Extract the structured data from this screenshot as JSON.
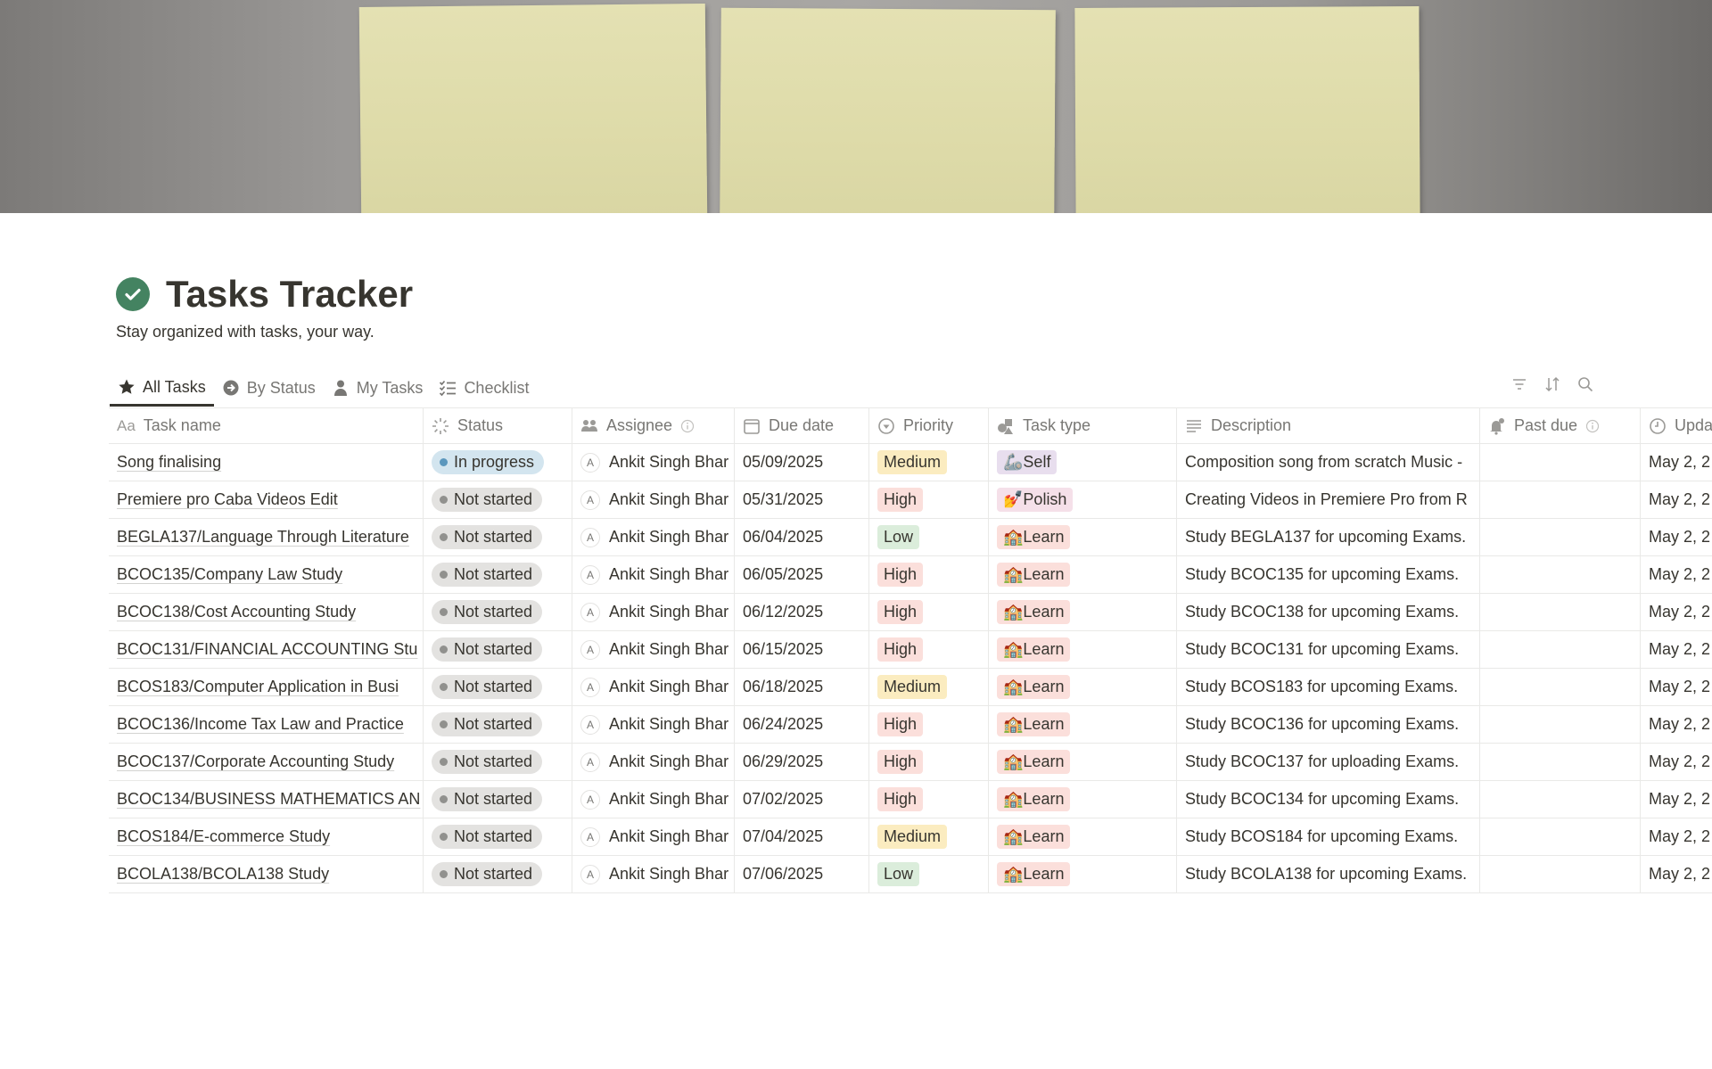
{
  "page": {
    "title": "Tasks Tracker",
    "subtitle": "Stay organized with tasks, your way.",
    "icon": "check-circle-icon",
    "accent": "#448361"
  },
  "tabs": [
    {
      "label": "All Tasks",
      "icon": "star-icon",
      "active": true
    },
    {
      "label": "By Status",
      "icon": "arrow-circle-icon",
      "active": false
    },
    {
      "label": "My Tasks",
      "icon": "person-icon",
      "active": false
    },
    {
      "label": "Checklist",
      "icon": "checklist-icon",
      "active": false
    }
  ],
  "toolbar": [
    "filter-icon",
    "sort-icon",
    "search-icon"
  ],
  "columns": [
    {
      "label": "Task name",
      "icon": "text-icon"
    },
    {
      "label": "Status",
      "icon": "status-icon"
    },
    {
      "label": "Assignee",
      "icon": "people-icon",
      "info": true
    },
    {
      "label": "Due date",
      "icon": "calendar-icon"
    },
    {
      "label": "Priority",
      "icon": "select-icon"
    },
    {
      "label": "Task type",
      "icon": "shapes-icon"
    },
    {
      "label": "Description",
      "icon": "lines-icon"
    },
    {
      "label": "Past due",
      "icon": "bell-icon",
      "info": true
    },
    {
      "label": "Upda",
      "icon": "clock-icon"
    }
  ],
  "statuses": {
    "In progress": {
      "bg": "#d3e5ef",
      "dot": "#5b97bd"
    },
    "Not started": {
      "bg": "#e3e2e0",
      "dot": "#91918e"
    }
  },
  "priorities": {
    "Medium": "#fbecc0",
    "High": "#fbdfdb",
    "Low": "#dbeddb"
  },
  "types": {
    "Self": {
      "emoji": "🦾",
      "bg": "#e8deee"
    },
    "Polish": {
      "emoji": "💅",
      "bg": "#f5e0e9"
    },
    "Learn": {
      "emoji": "🏫",
      "bg": "#fbdfdb"
    }
  },
  "rows": [
    {
      "task": "Song finalising",
      "status": "In progress",
      "assignee": "Ankit Singh Bhar",
      "initial": "A",
      "due": "05/09/2025",
      "priority": "Medium",
      "type": "Self",
      "description": "Composition song from scratch Music -",
      "past_due": "",
      "updated": "May 2, 2"
    },
    {
      "task": "Premiere pro Caba Videos Edit",
      "status": "Not started",
      "assignee": "Ankit Singh Bhar",
      "initial": "A",
      "due": "05/31/2025",
      "priority": "High",
      "type": "Polish",
      "description": "Creating Videos in Premiere Pro from R",
      "past_due": "",
      "updated": "May 2, 2"
    },
    {
      "task": "BEGLA137/Language Through Literature",
      "status": "Not started",
      "assignee": "Ankit Singh Bhar",
      "initial": "A",
      "due": "06/04/2025",
      "priority": "Low",
      "type": "Learn",
      "description": "Study BEGLA137 for upcoming Exams.",
      "past_due": "",
      "updated": "May 2, 2"
    },
    {
      "task": "BCOC135/Company Law Study",
      "status": "Not started",
      "assignee": "Ankit Singh Bhar",
      "initial": "A",
      "due": "06/05/2025",
      "priority": "High",
      "type": "Learn",
      "description": "Study BCOC135 for upcoming Exams.",
      "past_due": "",
      "updated": "May 2, 2"
    },
    {
      "task": "BCOC138/Cost Accounting Study",
      "status": "Not started",
      "assignee": "Ankit Singh Bhar",
      "initial": "A",
      "due": "06/12/2025",
      "priority": "High",
      "type": "Learn",
      "description": "Study BCOC138 for upcoming Exams.",
      "past_due": "",
      "updated": "May 2, 2"
    },
    {
      "task": "BCOC131/FINANCIAL ACCOUNTING Stu",
      "status": "Not started",
      "assignee": "Ankit Singh Bhar",
      "initial": "A",
      "due": "06/15/2025",
      "priority": "High",
      "type": "Learn",
      "description": "Study BCOC131 for upcoming Exams.",
      "past_due": "",
      "updated": "May 2, 2"
    },
    {
      "task": "BCOS183/Computer Application in Busi",
      "status": "Not started",
      "assignee": "Ankit Singh Bhar",
      "initial": "A",
      "due": "06/18/2025",
      "priority": "Medium",
      "type": "Learn",
      "description": "Study BCOS183 for upcoming Exams.",
      "past_due": "",
      "updated": "May 2, 2"
    },
    {
      "task": "BCOC136/Income Tax Law and Practice",
      "status": "Not started",
      "assignee": "Ankit Singh Bhar",
      "initial": "A",
      "due": "06/24/2025",
      "priority": "High",
      "type": "Learn",
      "description": "Study BCOC136 for upcoming Exams.",
      "past_due": "",
      "updated": "May 2, 2"
    },
    {
      "task": "BCOC137/Corporate Accounting Study",
      "status": "Not started",
      "assignee": "Ankit Singh Bhar",
      "initial": "A",
      "due": "06/29/2025",
      "priority": "High",
      "type": "Learn",
      "description": "Study BCOC137 for uploading Exams.",
      "past_due": "",
      "updated": "May 2, 2"
    },
    {
      "task": "BCOC134/BUSINESS MATHEMATICS AN",
      "status": "Not started",
      "assignee": "Ankit Singh Bhar",
      "initial": "A",
      "due": "07/02/2025",
      "priority": "High",
      "type": "Learn",
      "description": "Study BCOC134 for upcoming Exams.",
      "past_due": "",
      "updated": "May 2, 2"
    },
    {
      "task": "BCOS184/E-commerce Study",
      "status": "Not started",
      "assignee": "Ankit Singh Bhar",
      "initial": "A",
      "due": "07/04/2025",
      "priority": "Medium",
      "type": "Learn",
      "description": "Study BCOS184 for upcoming Exams.",
      "past_due": "",
      "updated": "May 2, 2"
    },
    {
      "task": "BCOLA138/BCOLA138 Study",
      "status": "Not started",
      "assignee": "Ankit Singh Bhar",
      "initial": "A",
      "due": "07/06/2025",
      "priority": "Low",
      "type": "Learn",
      "description": "Study BCOLA138 for upcoming Exams.",
      "past_due": "",
      "updated": "May 2, 2"
    }
  ]
}
